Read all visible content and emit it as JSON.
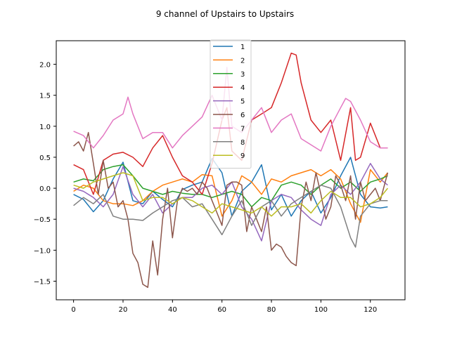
{
  "chart_data": {
    "type": "line",
    "title": "9 channel of Upstairs to Upstairs",
    "xlabel": "",
    "ylabel": "",
    "xlim": [
      -7,
      134
    ],
    "ylim": [
      -1.8,
      2.38
    ],
    "xticks": [
      0,
      20,
      40,
      60,
      80,
      100,
      120
    ],
    "yticks": [
      -1.5,
      -1.0,
      -0.5,
      0.0,
      0.5,
      1.0,
      1.5,
      2.0
    ],
    "ytick_labels": [
      "−1.5",
      "−1.0",
      "−0.5",
      "0.0",
      "0.5",
      "1.0",
      "1.5",
      "2.0"
    ],
    "grid": false,
    "legend_position": "upper center",
    "series": [
      {
        "name": "1",
        "color": "#1f77b4",
        "x": [
          0,
          4,
          8,
          12,
          16,
          20,
          24,
          28,
          32,
          36,
          40,
          44,
          48,
          52,
          56,
          60,
          64,
          68,
          72,
          76,
          80,
          84,
          88,
          92,
          96,
          100,
          104,
          108,
          112,
          116,
          120,
          124,
          127
        ],
        "y": [
          -0.1,
          -0.18,
          -0.38,
          -0.2,
          0.15,
          0.42,
          -0.2,
          -0.25,
          -0.05,
          -0.18,
          -0.3,
          -0.02,
          0.05,
          0.1,
          0.48,
          0.25,
          -0.45,
          -0.05,
          0.1,
          0.38,
          -0.35,
          -0.1,
          -0.45,
          -0.2,
          -0.05,
          -0.4,
          -0.15,
          0.2,
          0.5,
          -0.1,
          -0.3,
          -0.32,
          -0.3
        ]
      },
      {
        "name": "2",
        "color": "#ff7f0e",
        "x": [
          0,
          4,
          8,
          12,
          16,
          20,
          24,
          28,
          32,
          36,
          40,
          44,
          48,
          52,
          56,
          60,
          64,
          68,
          72,
          76,
          80,
          84,
          88,
          92,
          96,
          100,
          104,
          108,
          112,
          116,
          120,
          124,
          127
        ],
        "y": [
          -0.05,
          0.05,
          0.0,
          -0.2,
          -0.25,
          -0.25,
          -0.28,
          -0.2,
          -0.05,
          0.05,
          0.1,
          0.15,
          0.1,
          0.22,
          0.2,
          -0.45,
          -0.2,
          0.2,
          0.1,
          -0.1,
          0.15,
          0.1,
          0.2,
          0.25,
          0.3,
          0.2,
          0.3,
          0.15,
          -0.25,
          -0.55,
          0.3,
          0.1,
          0.25
        ]
      },
      {
        "name": "3",
        "color": "#2ca02c",
        "x": [
          0,
          4,
          8,
          12,
          16,
          20,
          24,
          28,
          32,
          36,
          40,
          44,
          48,
          52,
          56,
          60,
          64,
          68,
          72,
          76,
          80,
          84,
          88,
          92,
          96,
          100,
          104,
          108,
          112,
          116,
          120,
          124,
          127
        ],
        "y": [
          0.1,
          0.15,
          0.12,
          0.3,
          0.35,
          0.38,
          0.2,
          0.0,
          -0.05,
          -0.1,
          -0.05,
          -0.08,
          -0.1,
          -0.1,
          -0.15,
          -0.1,
          -0.05,
          -0.1,
          -0.3,
          -0.15,
          -0.2,
          0.05,
          0.1,
          0.05,
          -0.1,
          0.05,
          0.15,
          0.0,
          0.1,
          -0.05,
          0.1,
          0.15,
          0.2
        ]
      },
      {
        "name": "4",
        "color": "#d62728",
        "x": [
          0,
          4,
          8,
          12,
          16,
          20,
          24,
          28,
          32,
          36,
          40,
          44,
          48,
          52,
          56,
          60,
          62,
          64,
          68,
          72,
          76,
          80,
          84,
          88,
          90,
          92,
          96,
          100,
          104,
          108,
          112,
          114,
          116,
          120,
          124,
          127
        ],
        "y": [
          0.38,
          0.3,
          -0.1,
          0.45,
          0.55,
          0.58,
          0.5,
          0.35,
          0.65,
          0.85,
          0.5,
          0.2,
          0.1,
          -0.1,
          0.4,
          1.1,
          1.3,
          0.6,
          0.45,
          1.1,
          1.2,
          1.3,
          1.7,
          2.18,
          2.15,
          1.7,
          1.1,
          0.9,
          1.1,
          0.45,
          1.3,
          0.45,
          0.5,
          1.05,
          0.65,
          0.65
        ]
      },
      {
        "name": "5",
        "color": "#9467bd",
        "x": [
          0,
          4,
          8,
          12,
          16,
          20,
          24,
          28,
          32,
          36,
          40,
          44,
          48,
          52,
          56,
          60,
          64,
          68,
          72,
          76,
          80,
          84,
          88,
          92,
          96,
          100,
          104,
          108,
          112,
          116,
          120,
          124,
          127
        ],
        "y": [
          0.0,
          -0.05,
          -0.15,
          -0.3,
          -0.1,
          0.35,
          -0.1,
          -0.3,
          -0.1,
          -0.4,
          -0.25,
          -0.15,
          -0.15,
          0.0,
          0.05,
          -0.1,
          0.1,
          -0.3,
          -0.5,
          -0.85,
          -0.2,
          -0.1,
          -0.15,
          -0.35,
          -0.5,
          -0.6,
          -0.1,
          0.05,
          -0.1,
          0.1,
          0.4,
          0.15,
          0.05
        ]
      },
      {
        "name": "6",
        "color": "#8c564b",
        "x": [
          0,
          2,
          4,
          6,
          8,
          10,
          12,
          14,
          16,
          18,
          20,
          22,
          24,
          26,
          28,
          30,
          32,
          34,
          36,
          38,
          40,
          42,
          44,
          46,
          48,
          50,
          52,
          54,
          56,
          58,
          60,
          62,
          64,
          66,
          68,
          70,
          72,
          74,
          76,
          78,
          80,
          82,
          84,
          86,
          88,
          90,
          92,
          94,
          96,
          98,
          100,
          102,
          104,
          106,
          108,
          110,
          112,
          114,
          116,
          118,
          120,
          122,
          124,
          127
        ],
        "y": [
          0.68,
          0.75,
          0.6,
          0.9,
          0.4,
          -0.1,
          0.45,
          0.0,
          0.1,
          -0.3,
          -0.2,
          -0.5,
          -1.05,
          -1.2,
          -1.55,
          -1.6,
          -0.85,
          -1.4,
          -0.5,
          0.0,
          -0.8,
          -0.2,
          0.0,
          -0.05,
          0.0,
          -0.1,
          0.1,
          0.0,
          -0.2,
          -0.4,
          -0.6,
          0.05,
          0.1,
          0.1,
          0.05,
          -0.7,
          -0.3,
          -0.5,
          -0.7,
          -0.3,
          -1.0,
          -0.9,
          -0.95,
          -1.1,
          -1.2,
          -1.25,
          -0.3,
          0.1,
          -0.2,
          0.25,
          -0.1,
          -0.5,
          -0.3,
          0.2,
          0.05,
          -0.2,
          0.2,
          -0.5,
          0.1,
          -0.2,
          -0.1,
          0.0,
          -0.2,
          0.25
        ]
      },
      {
        "name": "7",
        "color": "#e377c2",
        "x": [
          0,
          4,
          8,
          12,
          16,
          20,
          22,
          24,
          28,
          32,
          36,
          40,
          44,
          48,
          52,
          56,
          60,
          62,
          64,
          68,
          72,
          76,
          80,
          84,
          88,
          92,
          96,
          100,
          104,
          108,
          110,
          112,
          116,
          120,
          124,
          127
        ],
        "y": [
          0.92,
          0.85,
          0.65,
          0.85,
          1.1,
          1.2,
          1.47,
          1.2,
          0.8,
          0.9,
          0.9,
          0.65,
          0.85,
          1.0,
          1.15,
          1.5,
          1.1,
          1.95,
          1.0,
          0.9,
          1.1,
          1.3,
          0.9,
          1.1,
          1.2,
          0.8,
          0.7,
          0.6,
          1.0,
          1.3,
          1.45,
          1.4,
          1.1,
          0.75,
          0.65,
          0.65
        ]
      },
      {
        "name": "8",
        "color": "#7f7f7f",
        "x": [
          0,
          4,
          8,
          12,
          16,
          20,
          24,
          28,
          32,
          36,
          40,
          44,
          48,
          52,
          56,
          60,
          64,
          68,
          72,
          76,
          80,
          84,
          88,
          92,
          96,
          100,
          104,
          108,
          112,
          114,
          116,
          120,
          124,
          127
        ],
        "y": [
          -0.28,
          -0.15,
          -0.25,
          -0.1,
          -0.45,
          -0.5,
          -0.5,
          -0.52,
          -0.4,
          -0.3,
          -0.2,
          -0.15,
          -0.3,
          -0.25,
          -0.5,
          -0.75,
          -0.45,
          -0.2,
          -0.6,
          -0.3,
          -0.2,
          -0.45,
          -0.25,
          -0.15,
          -0.05,
          0.05,
          0.0,
          -0.3,
          -0.8,
          -0.95,
          -0.45,
          -0.25,
          -0.2,
          -0.2
        ]
      },
      {
        "name": "9",
        "color": "#bcbd22",
        "x": [
          0,
          4,
          8,
          12,
          16,
          20,
          24,
          28,
          32,
          36,
          40,
          44,
          48,
          52,
          56,
          60,
          64,
          68,
          72,
          76,
          80,
          84,
          88,
          92,
          96,
          100,
          104,
          108,
          112,
          116,
          120,
          124,
          127
        ],
        "y": [
          0.05,
          0.0,
          0.1,
          0.15,
          0.2,
          0.25,
          0.2,
          -0.2,
          -0.15,
          -0.15,
          -0.25,
          -0.15,
          -0.2,
          -0.3,
          -0.4,
          -0.25,
          -0.3,
          -0.35,
          -0.4,
          -0.3,
          -0.45,
          -0.3,
          -0.3,
          -0.25,
          -0.4,
          -0.2,
          -0.05,
          -0.15,
          -0.15,
          -0.3,
          -0.25,
          -0.15,
          0.0
        ]
      }
    ]
  }
}
